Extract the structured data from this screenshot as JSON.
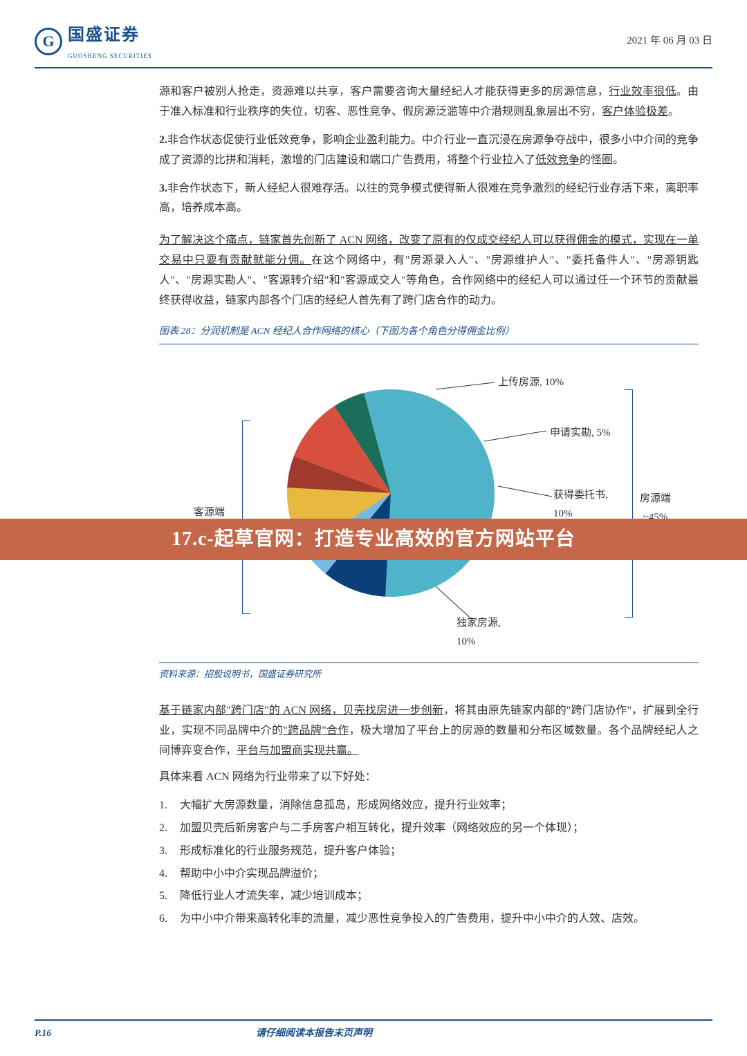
{
  "header": {
    "logo_cn": "国盛证券",
    "logo_en": "GUOSHENG SECURITIES",
    "logo_letter": "G",
    "date": "2021 年 06 月 03 日"
  },
  "paragraphs": {
    "p1": "源和客户被别人抢走，资源难以共享，客户需要咨询大量经纪人才能获得更多的房源信息，",
    "p1_u": "行业效率很低",
    "p1_b": "。由于准入标准和行业秩序的失位，切客、恶性竞争、假房源泛滥等中介潜规则乱象层出不穷，",
    "p1_u2": "客户体验极差",
    "p1_c": "。",
    "p2_num": "2.",
    "p2": "非合作状态促使行业低效竞争，影响企业盈利能力。中介行业一直沉浸在房源争夺战中，很多小中介间的竞争成了资源的比拼和消耗，激增的门店建设和端口广告费用，将整个行业拉入了",
    "p2_u": "低效竞争",
    "p2_b": "的怪圈。",
    "p3_num": "3.",
    "p3": "非合作状态下，新人经纪人很难存活。以往的竞争模式使得新人很难在竞争激烈的经纪行业存活下来，离职率高，培养成本高。",
    "p4_u1": "为了解决这个痛点，链家首先创新了 ACN 网络，改变了原有的仅成交经纪人可以获得佣金的模式，实现在一单交易中只要有贡献就能分佣。",
    "p4": "在这个网络中，有\"房源录入人\"、\"房源维护人\"、\"委托备件人\"、\"房源钥匙人\"、\"房源实勘人\"、\"客源转介绍\"和\"客源成交人\"等角色，合作网络中的经纪人可以通过任一个环节的贡献最终获得收益，链家内部各个门店的经纪人首先有了跨门店合作的动力。"
  },
  "chart": {
    "title": "图表 28：分润机制是 ACN 经纪人合作网络的核心（下图为各个角色分得佣金比例）",
    "source": "资料来源：招股说明书，国盛证券研究所",
    "slices": [
      {
        "label": "获取客源, 55%",
        "value": 55,
        "color": "#4fb3c9"
      },
      {
        "label": "上传房源, 10%",
        "value": 10,
        "color": "#0a3f7a"
      },
      {
        "label": "申请实勘, 5%",
        "value": 5,
        "color": "#7ab8e0"
      },
      {
        "label": "获得委托书, 10%",
        "value": 10,
        "color": "#e8b93f"
      },
      {
        "label": "",
        "value": 5,
        "color": "#9e3b2e"
      },
      {
        "label": "独家房源, 10%",
        "value": 10,
        "color": "#d94f3d"
      },
      {
        "label": "",
        "value": 5,
        "color": "#1a6e5a"
      }
    ],
    "left_label": "客源端\n~55%",
    "right_label": "房源端\n~45%",
    "lbl_upload": "上传房源, 10%",
    "lbl_survey": "申请实勘, 5%",
    "lbl_entrust": "获得委托书,\n10%",
    "lbl_center": "获取客源, 55%",
    "lbl_exclusive": "独家房源,\n10%"
  },
  "banner": "17.c-起草官网：打造专业高效的官方网站平台",
  "section2": {
    "intro_u1": "基于链家内部\"跨门店\"的 ACN 网络，贝壳找房进一步创新",
    "intro_a": "，将其由原先链家内部的\"跨门店协作\"，扩展到全行业，实现不同品牌中介的",
    "intro_u2": "\"跨品牌\"合作",
    "intro_b": "，极大增加了平台上的房源的数量和分布区域数量。各个品牌经纪人之间博弈变合作，",
    "intro_u3": "平台与加盟商实现共赢。",
    "intro_lead": "具体来看 ACN 网络为行业带来了以下好处：",
    "items": [
      "大幅扩大房源数量，消除信息孤岛，形成网络效应，提升行业效率；",
      "加盟贝壳后新房客户与二手房客户相互转化，提升效率（网络效应的另一个体现）；",
      "形成标准化的行业服务规范，提升客户体验；",
      "帮助中小中介实现品牌溢价；",
      "降低行业人才流失率，减少培训成本；",
      "为中小中介带来高转化率的流量，减少恶性竞争投入的广告费用，提升中小中介的人效、店效。"
    ]
  },
  "footer": {
    "page": "P.16",
    "disclaimer": "请仔细阅读本报告末页声明"
  }
}
